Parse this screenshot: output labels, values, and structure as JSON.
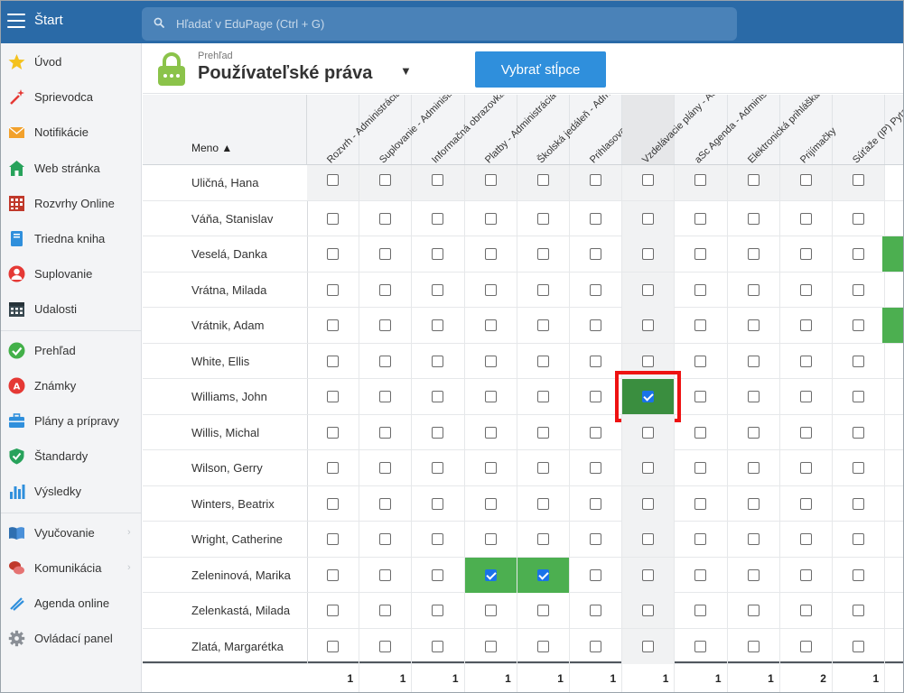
{
  "app": {
    "start_label": "Štart"
  },
  "search": {
    "placeholder": "Hľadať v EduPage (Ctrl + G)"
  },
  "sidebar": {
    "groups": [
      [
        {
          "label": "Úvod",
          "icon": "star-icon"
        },
        {
          "label": "Sprievodca",
          "icon": "magic-wand-icon"
        },
        {
          "label": "Notifikácie",
          "icon": "envelope-icon"
        },
        {
          "label": "Web stránka",
          "icon": "home-icon"
        },
        {
          "label": "Rozvrhy Online",
          "icon": "timetable-icon"
        },
        {
          "label": "Triedna kniha",
          "icon": "book-icon"
        },
        {
          "label": "Suplovanie",
          "icon": "substitute-person-icon"
        },
        {
          "label": "Udalosti",
          "icon": "calendar-icon"
        }
      ],
      [
        {
          "label": "Prehľad",
          "icon": "check-circle-icon"
        },
        {
          "label": "Známky",
          "icon": "grades-icon"
        },
        {
          "label": "Plány a prípravy",
          "icon": "briefcase-icon"
        },
        {
          "label": "Štandardy",
          "icon": "shield-check-icon"
        },
        {
          "label": "Výsledky",
          "icon": "bar-chart-icon"
        }
      ],
      [
        {
          "label": "Vyučovanie",
          "icon": "open-book-icon",
          "chevron": true
        },
        {
          "label": "Komunikácia",
          "icon": "chat-bubbles-icon",
          "chevron": true
        },
        {
          "label": "Agenda online",
          "icon": "pen-icon"
        },
        {
          "label": "Ovládací panel",
          "icon": "gear-icon"
        }
      ]
    ]
  },
  "header": {
    "crumb": "Prehľad",
    "title": "Používateľské práva",
    "select_columns_label": "Vybrať stĺpce"
  },
  "table": {
    "name_header": "Meno ▲",
    "columns": [
      {
        "label": "Rozvrh - Administrácia"
      },
      {
        "label": "Suplovanie - Administrácia"
      },
      {
        "label": "Informačná obrazovka"
      },
      {
        "label": "Platby - Administrácia"
      },
      {
        "label": "Školská jedáleň - Administrácia"
      },
      {
        "label": "Prihlasovanie - Administrácia"
      },
      {
        "label": "Vzdelávacie plány - Administrácia"
      },
      {
        "label": "aSc Agenda - Administrácia (Krúžky)"
      },
      {
        "label": "Elektronická prihláška - Administrácia"
      },
      {
        "label": "Prijímačky"
      },
      {
        "label": "Súťaže (IP) Pytagoriáda"
      }
    ],
    "rows": [
      {
        "name": "Uličná, Hana",
        "checked": []
      },
      {
        "name": "Váňa, Stanislav",
        "checked": []
      },
      {
        "name": "Veselá, Danka",
        "checked": [],
        "edge_green": true
      },
      {
        "name": "Vrátna, Milada",
        "checked": []
      },
      {
        "name": "Vrátnik, Adam",
        "checked": [],
        "edge_green": true
      },
      {
        "name": "White, Ellis",
        "checked": []
      },
      {
        "name": "Williams, John",
        "checked": [
          6
        ]
      },
      {
        "name": "Willis, Michal",
        "checked": []
      },
      {
        "name": "Wilson, Gerry",
        "checked": []
      },
      {
        "name": "Winters, Beatrix",
        "checked": []
      },
      {
        "name": "Wright, Catherine",
        "checked": []
      },
      {
        "name": "Zeleninová, Marika",
        "checked": [
          3,
          4
        ]
      },
      {
        "name": "Zelenkastá, Milada",
        "checked": []
      },
      {
        "name": "Zlatá, Margarétka",
        "checked": []
      }
    ],
    "totals": [
      "1",
      "1",
      "1",
      "1",
      "1",
      "1",
      "1",
      "1",
      "1",
      "2",
      "1"
    ]
  },
  "colors": {
    "topbar": "#2a6aa7",
    "accent_button": "#2f8fdc",
    "checked_cell": "#4caf50",
    "highlight": "#e11111"
  }
}
